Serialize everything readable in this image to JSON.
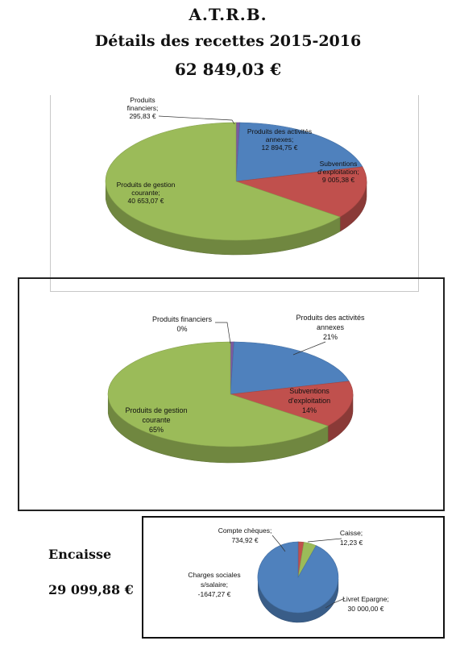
{
  "header": {
    "org": "A.T.R.B.",
    "title": "Détails des recettes 2015-2016",
    "total": "62 849,03 €"
  },
  "encaisse": {
    "label": "Encaisse",
    "value": "29 099,88 €"
  },
  "chart_data": [
    {
      "type": "pie",
      "slices": [
        {
          "label_lines": [
            "Produits",
            "financiers;",
            "295,83 €"
          ],
          "value": 295.83,
          "color": "#7a5aa0"
        },
        {
          "label_lines": [
            "Produits des activités",
            "annexes;",
            "12 894,75 €"
          ],
          "value": 12894.75,
          "color": "#4f81bd"
        },
        {
          "label_lines": [
            "Subventions",
            "d'exploitation;",
            "9 005,38 €"
          ],
          "value": 9005.38,
          "color": "#c0504d"
        },
        {
          "label_lines": [
            "Produits de gestion",
            "courante;",
            "40 653,07 €"
          ],
          "value": 40653.07,
          "color": "#9bbb59"
        }
      ]
    },
    {
      "type": "pie",
      "slices": [
        {
          "label_lines": [
            "Produits financiers",
            "0%"
          ],
          "value": 0.47,
          "color": "#7a5aa0"
        },
        {
          "label_lines": [
            "Produits des activités",
            "annexes",
            "21%"
          ],
          "value": 20.52,
          "color": "#4f81bd"
        },
        {
          "label_lines": [
            "Subventions",
            "d'exploitation",
            "14%"
          ],
          "value": 14.33,
          "color": "#c0504d"
        },
        {
          "label_lines": [
            "Produits de gestion",
            "courante",
            "65%"
          ],
          "value": 64.68,
          "color": "#9bbb59"
        }
      ]
    },
    {
      "type": "pie",
      "slices": [
        {
          "label_lines": [
            "Caisse;",
            "12,23 €"
          ],
          "value": 12.23,
          "color": "#7d60a0"
        },
        {
          "label_lines": [
            "Compte chèques;",
            "734,92 €"
          ],
          "value": 734.92,
          "color": "#c0504d"
        },
        {
          "label_lines": [
            "Charges sociales",
            "s/salaire;",
            "-1647,27 €"
          ],
          "value": -1647.27,
          "color": "#9bbb59"
        },
        {
          "label_lines": [
            "Livret Epargne;",
            "30 000,00 €"
          ],
          "value": 30000.0,
          "color": "#4f81bd"
        }
      ]
    }
  ]
}
